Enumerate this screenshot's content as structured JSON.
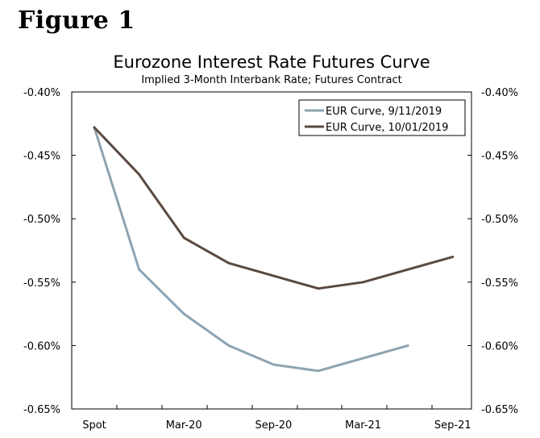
{
  "figure_label": "Figure 1",
  "colors": {
    "series1": "#8ea3b1",
    "series2": "#5a4a41",
    "axis": "#000000"
  },
  "chart_data": {
    "type": "line",
    "title": "Eurozone Interest Rate Futures Curve",
    "subtitle": "Implied 3-Month Interbank Rate; Futures Contract",
    "ylim": [
      -0.65,
      -0.4
    ],
    "y_ticks": [
      "-0.40%",
      "-0.45%",
      "-0.50%",
      "-0.55%",
      "-0.60%",
      "-0.65%"
    ],
    "y_tick_values": [
      -0.4,
      -0.45,
      -0.5,
      -0.55,
      -0.6,
      -0.65
    ],
    "x_tick_labels": [
      "Spot",
      "Mar-20",
      "Sep-20",
      "Mar-21",
      "Sep-21"
    ],
    "x_points": [
      "Spot",
      "Dec-19",
      "Mar-20",
      "Jun-20",
      "Sep-20",
      "Dec-20",
      "Mar-21",
      "Jun-21",
      "Sep-21"
    ],
    "legend_position": "top-right",
    "series": [
      {
        "name": "EUR Curve, 9/11/2019",
        "color": "#8ea3b1",
        "values": [
          -0.428,
          -0.54,
          -0.575,
          -0.6,
          -0.615,
          -0.62,
          -0.61,
          -0.6,
          null
        ]
      },
      {
        "name": "EUR Curve, 10/01/2019",
        "color": "#5a4a41",
        "values": [
          -0.428,
          -0.465,
          -0.515,
          -0.535,
          -0.545,
          -0.555,
          -0.55,
          -0.54,
          -0.53
        ]
      }
    ]
  }
}
